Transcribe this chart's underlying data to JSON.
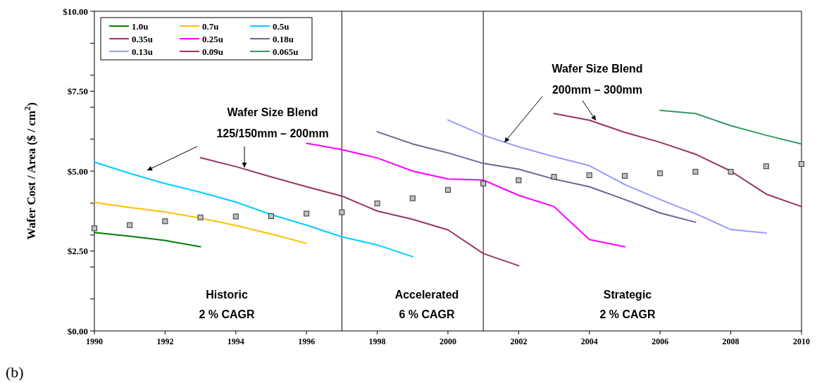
{
  "chart_data": {
    "type": "line",
    "ylabel": "Wafer Cost / Area ($ / cm$^{2}$)",
    "xlim": [
      1990,
      2010
    ],
    "xticks": [
      1990,
      1992,
      1994,
      1996,
      1998,
      2000,
      2002,
      2004,
      2006,
      2008,
      2010
    ],
    "ylim": [
      0,
      10
    ],
    "yticks": [
      {
        "value": 0,
        "label": "$0.00"
      },
      {
        "value": 1,
        "label": null
      },
      {
        "value": 2,
        "label": null
      },
      {
        "value": 2.5,
        "label": "$2.50"
      },
      {
        "value": 3,
        "label": null
      },
      {
        "value": 4,
        "label": null
      },
      {
        "value": 5,
        "label": "$5.00"
      },
      {
        "value": 6,
        "label": null
      },
      {
        "value": 7,
        "label": null
      },
      {
        "value": 7.5,
        "label": "$7.50"
      },
      {
        "value": 8,
        "label": null
      },
      {
        "value": 9,
        "label": null
      },
      {
        "value": 10,
        "label": "$10.00"
      }
    ],
    "grid": false,
    "legend": "top left",
    "marker": "none",
    "line_style": "solid",
    "series": [
      {
        "name": "1.0u",
        "color": "#008000",
        "x": [
          1990,
          1991,
          1992,
          1993
        ],
        "values": [
          3.08,
          2.96,
          2.83,
          2.63
        ]
      },
      {
        "name": "0.7u",
        "color": "#ffc000",
        "x": [
          1990,
          1991,
          1992,
          1993,
          1994,
          1995,
          1996
        ],
        "values": [
          4.02,
          3.86,
          3.72,
          3.53,
          3.3,
          3.03,
          2.74
        ]
      },
      {
        "name": "0.5u",
        "color": "#00ccff",
        "x": [
          1990,
          1991,
          1992,
          1993,
          1994,
          1995,
          1996,
          1997,
          1998,
          1999
        ],
        "values": [
          5.28,
          4.93,
          4.61,
          4.34,
          4.03,
          3.64,
          3.31,
          2.94,
          2.69,
          2.32
        ]
      },
      {
        "name": "0.35u",
        "color": "#993366",
        "x": [
          1993,
          1994,
          1995,
          1996,
          1997,
          1998,
          1999,
          2000,
          2001,
          2002
        ],
        "values": [
          5.42,
          5.14,
          4.82,
          4.51,
          4.22,
          3.75,
          3.49,
          3.16,
          2.42,
          2.04
        ]
      },
      {
        "name": "0.25u",
        "color": "#ff00ff",
        "x": [
          1996,
          1997,
          1998,
          1999,
          2000,
          2001,
          2002,
          2003,
          2004,
          2005
        ],
        "values": [
          5.87,
          5.67,
          5.41,
          5.0,
          4.75,
          4.72,
          4.24,
          3.89,
          2.86,
          2.63
        ]
      },
      {
        "name": "0.18u",
        "color": "#666699",
        "x": [
          1998,
          1999,
          2000,
          2001,
          2002,
          2003,
          2004,
          2005,
          2006,
          2007
        ],
        "values": [
          6.23,
          5.85,
          5.57,
          5.24,
          5.06,
          4.75,
          4.51,
          4.11,
          3.69,
          3.4
        ]
      },
      {
        "name": "0.13u",
        "color": "#9999ff",
        "x": [
          2000,
          2001,
          2002,
          2003,
          2004,
          2005,
          2006,
          2007,
          2008,
          2009
        ],
        "values": [
          6.6,
          6.12,
          5.76,
          5.45,
          5.17,
          4.58,
          4.11,
          3.67,
          3.17,
          3.06
        ]
      },
      {
        "name": "0.09u",
        "color": "#993366",
        "x": [
          2003,
          2004,
          2005,
          2006,
          2007,
          2008,
          2009,
          2010
        ],
        "values": [
          6.8,
          6.59,
          6.21,
          5.9,
          5.53,
          5.0,
          4.28,
          3.89
        ]
      },
      {
        "name": "0.065u",
        "color": "#339966",
        "x": [
          2006,
          2007,
          2008,
          2009,
          2010
        ],
        "values": [
          6.9,
          6.8,
          6.42,
          6.12,
          5.85
        ]
      },
      {
        "type": "scatter",
        "marker": "square",
        "color": "#c0c0c0",
        "x": [
          1990,
          1991,
          1992,
          1993,
          1994,
          1995,
          1996,
          1997,
          1998,
          1999,
          2000,
          2001,
          2002,
          2003,
          2004,
          2005,
          2006,
          2007,
          2008,
          2009,
          2010
        ],
        "values": [
          3.21,
          3.31,
          3.43,
          3.55,
          3.58,
          3.59,
          3.67,
          3.71,
          3.99,
          4.15,
          4.41,
          4.61,
          4.71,
          4.82,
          4.87,
          4.85,
          4.93,
          4.98,
          4.98,
          5.15,
          5.22
        ]
      }
    ],
    "ref_lines": [
      {
        "axis": "x",
        "value": 1997,
        "color": "#000000"
      },
      {
        "axis": "x",
        "value": 2001,
        "color": "#000000"
      }
    ],
    "annotations": [
      "Wafer Size Blend",
      "125/150mm – 200mm",
      "Wafer Size Blend",
      {
        "text": "200mm – 300mm",
        "x": 2001.6,
        "y": 5.9
      },
      "Historic",
      "2 % CAGR",
      "Accelerated",
      "6 % CAGR",
      "Strategic",
      "2 % CAGR",
      "(b)"
    ]
  }
}
